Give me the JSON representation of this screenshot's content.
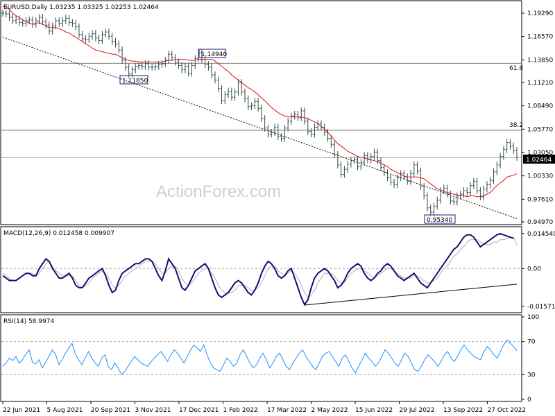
{
  "chart_data": [
    {
      "type": "line",
      "title": "EURUSD,Daily  1.03235 1.03325 1.02253 1.02464",
      "watermark": "ActionForex.com",
      "ylim": [
        0.9497,
        1.205
      ],
      "y_ticks": [
        "1.19290",
        "1.16570",
        "1.13850",
        "1.11210",
        "1.08490",
        "1.05770",
        "1.03050",
        "1.00330",
        "0.97610",
        "0.94970"
      ],
      "last_price_label": "1.02464",
      "last_price": 1.02464,
      "x_ticks": [
        "22 Jun 2021",
        "5 Aug 2021",
        "20 Sep 2021",
        "3 Nov 2021",
        "17 Dec 2021",
        "1 Feb 2022",
        "17 Mar 2022",
        "2 May 2022",
        "15 Jun 2022",
        "29 Jul 2022",
        "13 Sep 2022",
        "27 Oct 2022"
      ],
      "levels": [
        {
          "label": "61.8",
          "value": 1.1345
        },
        {
          "label": "38.2",
          "value": 1.0565
        }
      ],
      "price_annotations": [
        {
          "label": "1.14940",
          "value": 1.1494
        },
        {
          "label": "1.11850",
          "value": 1.1185
        },
        {
          "label": "0.95340",
          "value": 0.9534
        }
      ],
      "price_series": [
        1.193,
        1.192,
        1.188,
        1.184,
        1.186,
        1.182,
        1.181,
        1.184,
        1.185,
        1.18,
        1.184,
        1.188,
        1.183,
        1.179,
        1.172,
        1.178,
        1.184,
        1.181,
        1.184,
        1.187,
        1.182,
        1.181,
        1.177,
        1.168,
        1.163,
        1.162,
        1.166,
        1.169,
        1.164,
        1.161,
        1.168,
        1.171,
        1.166,
        1.16,
        1.157,
        1.15,
        1.138,
        1.13,
        1.122,
        1.127,
        1.131,
        1.132,
        1.131,
        1.134,
        1.13,
        1.13,
        1.131,
        1.133,
        1.134,
        1.138,
        1.145,
        1.141,
        1.136,
        1.132,
        1.127,
        1.131,
        1.123,
        1.132,
        1.14,
        1.147,
        1.139,
        1.133,
        1.13,
        1.121,
        1.115,
        1.105,
        1.091,
        1.098,
        1.102,
        1.095,
        1.101,
        1.112,
        1.101,
        1.093,
        1.084,
        1.085,
        1.09,
        1.082,
        1.07,
        1.059,
        1.052,
        1.054,
        1.06,
        1.049,
        1.047,
        1.059,
        1.067,
        1.073,
        1.075,
        1.071,
        1.079,
        1.067,
        1.055,
        1.052,
        1.06,
        1.064,
        1.06,
        1.054,
        1.047,
        1.04,
        1.028,
        1.016,
        1.005,
        1.011,
        1.017,
        1.021,
        1.022,
        1.014,
        1.019,
        1.027,
        1.022,
        1.026,
        1.031,
        1.021,
        1.013,
        1.007,
        1.001,
        0.996,
        0.993,
        1.001,
        1.006,
        1.002,
        0.997,
        1.006,
        1.016,
        1.009,
        0.991,
        0.98,
        0.966,
        0.961,
        0.968,
        0.975,
        0.986,
        0.989,
        0.982,
        0.974,
        0.973,
        0.98,
        0.982,
        0.986,
        0.984,
        0.992,
        0.997,
        0.986,
        0.979,
        0.988,
        0.993,
        0.998,
        1.008,
        1.016,
        1.026,
        1.034,
        1.042,
        1.038,
        1.033,
        1.025
      ],
      "ma_series": [
        1.201,
        1.2,
        1.197,
        1.193,
        1.19,
        1.188,
        1.185,
        1.183,
        1.181,
        1.18,
        1.181,
        1.182,
        1.18,
        1.178,
        1.176,
        1.176,
        1.176,
        1.175,
        1.173,
        1.171,
        1.17,
        1.167,
        1.165,
        1.162,
        1.16,
        1.157,
        1.155,
        1.152,
        1.15,
        1.149,
        1.148,
        1.147,
        1.146,
        1.145,
        1.145,
        1.143,
        1.141,
        1.139,
        1.138,
        1.137,
        1.137,
        1.136,
        1.136,
        1.136,
        1.136,
        1.136,
        1.136,
        1.136,
        1.136,
        1.137,
        1.138,
        1.138,
        1.139,
        1.139,
        1.139,
        1.139,
        1.138,
        1.138,
        1.138,
        1.139,
        1.139,
        1.139,
        1.139,
        1.139,
        1.137,
        1.134,
        1.131,
        1.128,
        1.125,
        1.121,
        1.118,
        1.115,
        1.112,
        1.109,
        1.106,
        1.104,
        1.101,
        1.098,
        1.094,
        1.091,
        1.087,
        1.083,
        1.08,
        1.077,
        1.075,
        1.073,
        1.072,
        1.072,
        1.072,
        1.072,
        1.072,
        1.071,
        1.07,
        1.068,
        1.066,
        1.064,
        1.061,
        1.058,
        1.054,
        1.05,
        1.045,
        1.041,
        1.038,
        1.035,
        1.032,
        1.03,
        1.028,
        1.026,
        1.025,
        1.024,
        1.023,
        1.022,
        1.021,
        1.02,
        1.018,
        1.016,
        1.014,
        1.011,
        1.009,
        1.007,
        1.005,
        1.003,
        1.002,
        1.002,
        1.002,
        1.002,
        1.001,
        1.0,
        0.997,
        0.994,
        0.991,
        0.988,
        0.987,
        0.985,
        0.984,
        0.983,
        0.982,
        0.981,
        0.98,
        0.98,
        0.979,
        0.98,
        0.98,
        0.979,
        0.979,
        0.98,
        0.982,
        0.984,
        0.988,
        0.992,
        0.995,
        0.998,
        1.002,
        1.003,
        1.004,
        1.006
      ],
      "trendline": [
        {
          "date_index": 0,
          "value": 1.165
        },
        {
          "date_index": 155,
          "value": 0.9534
        }
      ]
    },
    {
      "type": "line",
      "title": "MACD(12,26,9) 0.012458 0.009907",
      "ylim": [
        -0.0175,
        0.0165
      ],
      "y_ticks": [
        "0.014549",
        "0.00",
        "-0.015712"
      ],
      "macd_series": [
        -0.003,
        -0.004,
        -0.005,
        -0.005,
        -0.005,
        -0.004,
        -0.003,
        -0.002,
        -0.002,
        -0.003,
        -0.003,
        0.0,
        0.002,
        0.004,
        0.003,
        0.0,
        -0.002,
        -0.004,
        -0.004,
        -0.003,
        -0.002,
        -0.004,
        -0.007,
        -0.008,
        -0.008,
        -0.006,
        -0.004,
        -0.003,
        -0.002,
        -0.001,
        0.0,
        -0.003,
        -0.007,
        -0.01,
        -0.009,
        -0.005,
        -0.002,
        -0.001,
        0.0,
        0.001,
        0.002,
        0.002,
        0.003,
        0.004,
        0.004,
        0.003,
        0.0,
        -0.003,
        -0.005,
        -0.001,
        0.004,
        0.002,
        0.0,
        -0.004,
        -0.008,
        -0.009,
        -0.007,
        -0.004,
        -0.001,
        0.0,
        0.001,
        0.002,
        0.0,
        -0.004,
        -0.008,
        -0.011,
        -0.012,
        -0.011,
        -0.01,
        -0.008,
        -0.006,
        -0.005,
        -0.006,
        -0.008,
        -0.01,
        -0.011,
        -0.009,
        -0.006,
        -0.002,
        0.001,
        0.003,
        0.002,
        0.0,
        -0.003,
        -0.004,
        -0.003,
        -0.001,
        0.0,
        -0.004,
        -0.008,
        -0.012,
        -0.015,
        -0.013,
        -0.008,
        -0.004,
        -0.002,
        -0.001,
        0.0,
        -0.001,
        -0.003,
        -0.005,
        -0.008,
        -0.007,
        -0.005,
        -0.002,
        0.0,
        0.001,
        0.002,
        0.001,
        -0.002,
        -0.004,
        -0.005,
        -0.004,
        -0.002,
        -0.001,
        0.001,
        0.002,
        0.001,
        -0.001,
        -0.003,
        -0.004,
        -0.005,
        -0.004,
        -0.003,
        -0.002,
        -0.004,
        -0.006,
        -0.007,
        -0.008,
        -0.006,
        -0.004,
        -0.002,
        0.0,
        0.002,
        0.004,
        0.006,
        0.008,
        0.009,
        0.011,
        0.013,
        0.014,
        0.014,
        0.013,
        0.011,
        0.009,
        0.01,
        0.011,
        0.012,
        0.013,
        0.014,
        0.0145,
        0.014,
        0.0135,
        0.013,
        0.0125
      ],
      "signal_series": [
        -0.002,
        -0.003,
        -0.004,
        -0.005,
        -0.005,
        -0.004,
        -0.003,
        -0.002,
        -0.002,
        -0.002,
        -0.003,
        -0.002,
        0.0,
        0.002,
        0.003,
        0.001,
        -0.001,
        -0.002,
        -0.003,
        -0.003,
        -0.003,
        -0.003,
        -0.005,
        -0.007,
        -0.008,
        -0.007,
        -0.006,
        -0.004,
        -0.003,
        -0.002,
        -0.001,
        -0.002,
        -0.004,
        -0.007,
        -0.008,
        -0.007,
        -0.005,
        -0.003,
        -0.002,
        -0.001,
        0.0,
        0.001,
        0.002,
        0.003,
        0.003,
        0.003,
        0.002,
        0.0,
        -0.002,
        -0.002,
        0.0,
        0.001,
        0.001,
        -0.001,
        -0.004,
        -0.006,
        -0.007,
        -0.006,
        -0.004,
        -0.002,
        -0.001,
        0.0,
        0.0,
        -0.002,
        -0.004,
        -0.007,
        -0.009,
        -0.01,
        -0.01,
        -0.01,
        -0.009,
        -0.007,
        -0.007,
        -0.007,
        -0.008,
        -0.009,
        -0.009,
        -0.008,
        -0.006,
        -0.003,
        0.0,
        0.001,
        0.001,
        -0.001,
        -0.002,
        -0.003,
        -0.002,
        -0.001,
        -0.002,
        -0.004,
        -0.007,
        -0.01,
        -0.012,
        -0.011,
        -0.009,
        -0.006,
        -0.004,
        -0.002,
        -0.002,
        -0.002,
        -0.003,
        -0.005,
        -0.006,
        -0.006,
        -0.004,
        -0.002,
        -0.001,
        0.0,
        0.0,
        -0.001,
        -0.002,
        -0.003,
        -0.004,
        -0.003,
        -0.002,
        -0.001,
        0.0,
        0.0,
        -0.001,
        -0.002,
        -0.003,
        -0.004,
        -0.004,
        -0.004,
        -0.003,
        -0.003,
        -0.004,
        -0.005,
        -0.006,
        -0.006,
        -0.005,
        -0.004,
        -0.002,
        0.0,
        0.001,
        0.003,
        0.005,
        0.006,
        0.008,
        0.009,
        0.011,
        0.012,
        0.012,
        0.012,
        0.011,
        0.01,
        0.01,
        0.01,
        0.011,
        0.011,
        0.012,
        0.012,
        0.0125,
        0.0128,
        0.013,
        0.0099
      ],
      "trendline": [
        {
          "date_index": 91,
          "value": -0.0152
        },
        {
          "date_index": 155,
          "value": -0.0065
        }
      ]
    },
    {
      "type": "line",
      "title": "RSI(14) 58.9974",
      "ylim": [
        0,
        100
      ],
      "y_ticks": [
        "100",
        "70",
        "30",
        "0"
      ],
      "levels": [
        {
          "label": "70",
          "value": 70
        },
        {
          "label": "30",
          "value": 30
        }
      ],
      "rsi_series": [
        40,
        44,
        50,
        47,
        52,
        44,
        48,
        55,
        60,
        45,
        43,
        48,
        38,
        45,
        52,
        60,
        55,
        42,
        48,
        56,
        62,
        68,
        55,
        48,
        42,
        50,
        58,
        50,
        44,
        40,
        50,
        54,
        40,
        36,
        44,
        38,
        30,
        34,
        40,
        46,
        52,
        48,
        44,
        42,
        40,
        46,
        50,
        54,
        58,
        52,
        46,
        54,
        60,
        56,
        50,
        44,
        52,
        60,
        66,
        62,
        58,
        66,
        54,
        44,
        38,
        36,
        34,
        42,
        50,
        46,
        40,
        44,
        54,
        60,
        52,
        44,
        38,
        42,
        50,
        56,
        48,
        38,
        44,
        52,
        56,
        48,
        40,
        36,
        44,
        50,
        56,
        60,
        52,
        46,
        40,
        36,
        44,
        52,
        56,
        58,
        52,
        46,
        40,
        50,
        54,
        46,
        38,
        32,
        40,
        48,
        56,
        50,
        46,
        40,
        44,
        52,
        60,
        56,
        50,
        44,
        40,
        48,
        56,
        52,
        44,
        36,
        34,
        40,
        48,
        54,
        50,
        46,
        40,
        46,
        54,
        58,
        50,
        46,
        52,
        60,
        66,
        60,
        56,
        52,
        50,
        48,
        58,
        64,
        60,
        54,
        50,
        58,
        66,
        72,
        68,
        64,
        59
      ]
    }
  ]
}
